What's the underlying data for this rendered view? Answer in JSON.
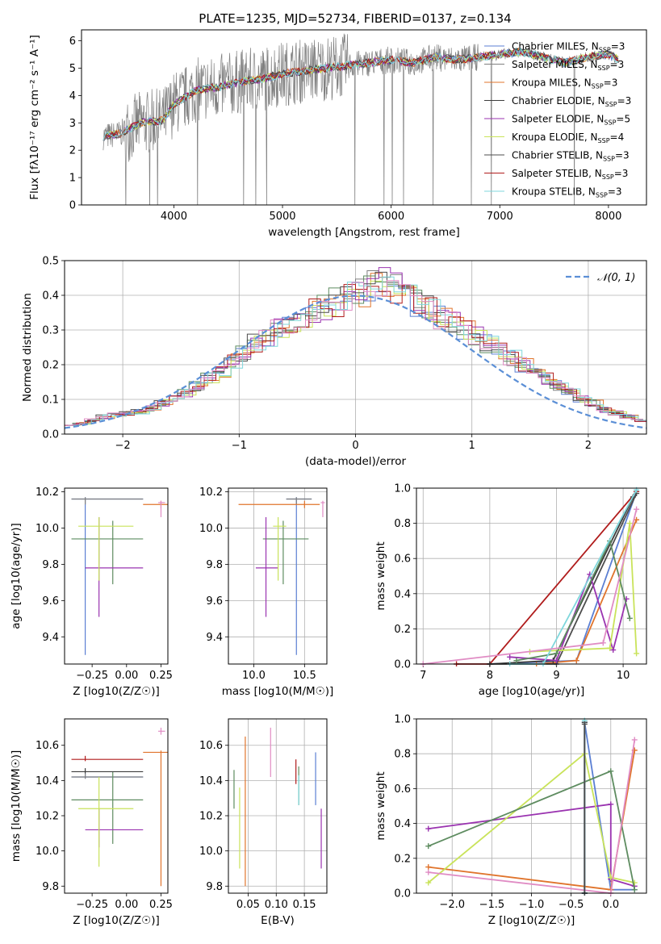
{
  "figure_title": "PLATE=1235, MJD=52734, FIBERID=0137, z=0.134",
  "colors": {
    "chabrier_miles": "#5b7fd3",
    "salpeter_miles": "#808080",
    "kroupa_miles": "#e0742c",
    "chabrier_elodie": "#3d3d3d",
    "salpeter_elodie": "#9a33b0",
    "kroupa_elodie": "#c9e35a",
    "chabrier_stelib": "#4d4d4d",
    "salpeter_stelib": "#b01c1c",
    "kroupa_stelib": "#7fd7dc",
    "gauss": "#5b8fd6",
    "pink": "#e08cc4",
    "green": "#5e8c60"
  },
  "chart_data": [
    {
      "id": "spectrum",
      "type": "line",
      "title": "PLATE=1235, MJD=52734, FIBERID=0137, z=0.134",
      "xlabel": "wavelength [Angstrom, rest frame]",
      "ylabel": "Flux [f_λ 10^-17 erg cm^-2 s^-1 A^-1]",
      "xlim": [
        3150,
        8350
      ],
      "ylim": [
        0,
        6.4
      ],
      "xticks": [
        "4000",
        "5000",
        "6000",
        "7000",
        "8000"
      ],
      "yticks": [
        "0",
        "1",
        "2",
        "3",
        "4",
        "5",
        "6"
      ],
      "legend_position": "upper right",
      "data_spectrum": {
        "x": [
          3350,
          3500,
          3700,
          3900,
          4000,
          4100,
          4200,
          4400,
          4600,
          4800,
          5000,
          5200,
          5400,
          5600,
          5800,
          6000,
          6200,
          6400,
          6600,
          6800,
          7000,
          7200,
          7400,
          7600,
          7800,
          8000,
          8100
        ],
        "y": [
          2.5,
          2.6,
          3.0,
          3.1,
          3.7,
          3.9,
          4.2,
          4.3,
          4.5,
          4.6,
          4.8,
          4.9,
          5.0,
          5.1,
          5.2,
          5.3,
          5.2,
          5.4,
          5.3,
          5.4,
          5.5,
          5.6,
          5.4,
          5.2,
          5.4,
          5.5,
          5.3
        ]
      },
      "series": [
        {
          "name": "Chabrier MILES, N_SSP=3",
          "label_main": "Chabrier MILES, N",
          "label_sub": "SSP",
          "label_end": "=3",
          "color": "#5b7fd3"
        },
        {
          "name": "Salpeter MILES, N_SSP=3",
          "label_main": "Salpeter MILES, N",
          "label_sub": "SSP",
          "label_end": "=3",
          "color": "#808080"
        },
        {
          "name": "Kroupa MILES, N_SSP=3",
          "label_main": "Kroupa MILES, N",
          "label_sub": "SSP",
          "label_end": "=3",
          "color": "#e0742c"
        },
        {
          "name": "Chabrier ELODIE, N_SSP=3",
          "label_main": "Chabrier ELODIE, N",
          "label_sub": "SSP",
          "label_end": "=3",
          "color": "#3d3d3d"
        },
        {
          "name": "Salpeter ELODIE, N_SSP=5",
          "label_main": "Salpeter ELODIE, N",
          "label_sub": "SSP",
          "label_end": "=5",
          "color": "#9a33b0"
        },
        {
          "name": "Kroupa ELODIE, N_SSP=4",
          "label_main": "Kroupa ELODIE, N",
          "label_sub": "SSP",
          "label_end": "=4",
          "color": "#c9e35a"
        },
        {
          "name": "Chabrier STELIB, N_SSP=3",
          "label_main": "Chabrier STELIB, N",
          "label_sub": "SSP",
          "label_end": "=3",
          "color": "#4d4d4d"
        },
        {
          "name": "Salpeter STELIB, N_SSP=3",
          "label_main": "Salpeter STELIB, N",
          "label_sub": "SSP",
          "label_end": "=3",
          "color": "#b01c1c"
        },
        {
          "name": "Kroupa STELIB, N_SSP=3",
          "label_main": "Kroupa STELIB, N",
          "label_sub": "SSP",
          "label_end": "=3",
          "color": "#7fd7dc"
        }
      ]
    },
    {
      "id": "residuals",
      "type": "histogram",
      "xlabel": "(data-model)/error",
      "ylabel": "Normed distribution",
      "xlim": [
        -2.5,
        2.5
      ],
      "ylim": [
        0,
        0.5
      ],
      "xticks": [
        "−2",
        "−1",
        "0",
        "1",
        "2"
      ],
      "yticks": [
        "0.0",
        "0.1",
        "0.2",
        "0.3",
        "0.4",
        "0.5"
      ],
      "grid": true,
      "bin_width": 0.1,
      "legend": "𝒩(0, 1)",
      "reference_curve": "standard normal, dashed",
      "histogram_profile": [
        0.028,
        0.03,
        0.04,
        0.05,
        0.055,
        0.06,
        0.065,
        0.075,
        0.09,
        0.1,
        0.12,
        0.14,
        0.16,
        0.18,
        0.21,
        0.23,
        0.26,
        0.28,
        0.3,
        0.32,
        0.34,
        0.36,
        0.37,
        0.38,
        0.4,
        0.41,
        0.43,
        0.44,
        0.42,
        0.4,
        0.38,
        0.36,
        0.34,
        0.32,
        0.3,
        0.28,
        0.26,
        0.24,
        0.22,
        0.2,
        0.18,
        0.16,
        0.14,
        0.12,
        0.1,
        0.09,
        0.07,
        0.06,
        0.05,
        0.04
      ]
    },
    {
      "id": "age_vs_Z",
      "type": "errorbar",
      "xlabel": "Z [log10(Z/Z☉)]",
      "ylabel": "age  [log10(age/yr)]",
      "xlim": [
        -0.45,
        0.3
      ],
      "ylim": [
        9.25,
        10.22
      ],
      "xticks": [
        "−0.25",
        "0.00",
        "0.25"
      ],
      "yticks": [
        "9.4",
        "9.6",
        "9.8",
        "10.0",
        "10.2"
      ],
      "points": [
        {
          "x": -0.3,
          "xerr": [
            0.1,
            0.42
          ],
          "y": 10.16,
          "yerr": [
            0.86,
            0.01
          ],
          "color": "#5b7fd3"
        },
        {
          "x": -0.3,
          "xerr": [
            0.1,
            0.42
          ],
          "y": 10.16,
          "yerr": [
            0.03,
            0.01
          ],
          "color": "#808080"
        },
        {
          "x": 0.25,
          "xerr": [
            0.13,
            0.05
          ],
          "y": 10.13,
          "yerr": [
            0.02,
            0.02
          ],
          "color": "#e0742c"
        },
        {
          "x": -0.1,
          "xerr": [
            0.3,
            0.22
          ],
          "y": 9.94,
          "yerr": [
            0.25,
            0.1
          ],
          "color": "#5e8c60"
        },
        {
          "x": -0.2,
          "xerr": [
            0.1,
            0.32
          ],
          "y": 9.78,
          "yerr": [
            0.27,
            0.28
          ],
          "color": "#9a33b0"
        },
        {
          "x": -0.2,
          "xerr": [
            0.15,
            0.25
          ],
          "y": 10.01,
          "yerr": [
            0.3,
            0.05
          ],
          "color": "#c9e35a"
        },
        {
          "x": 0.25,
          "xerr": [
            0.02,
            0.03
          ],
          "y": 10.14,
          "yerr": [
            0.08,
            0.01
          ],
          "color": "#e08cc4"
        }
      ]
    },
    {
      "id": "age_vs_mass",
      "type": "errorbar",
      "xlabel": "mass [log10(M/M☉)]",
      "ylabel": "",
      "xlim": [
        9.75,
        10.72
      ],
      "ylim": [
        9.25,
        10.22
      ],
      "xticks": [
        "10.0",
        "10.5"
      ],
      "yticks": [
        "9.4",
        "9.6",
        "9.8",
        "10.0",
        "10.2"
      ],
      "points": [
        {
          "x": 10.42,
          "xerr": [
            0.1,
            0.15
          ],
          "y": 10.16,
          "yerr": [
            0.86,
            0.01
          ],
          "color": "#5b7fd3"
        },
        {
          "x": 10.42,
          "xerr": [
            0.1,
            0.15
          ],
          "y": 10.16,
          "yerr": [
            0.03,
            0.01
          ],
          "color": "#808080"
        },
        {
          "x": 10.5,
          "xerr": [
            0.65,
            0.15
          ],
          "y": 10.13,
          "yerr": [
            0.02,
            0.02
          ],
          "color": "#e0742c"
        },
        {
          "x": 10.29,
          "xerr": [
            0.2,
            0.25
          ],
          "y": 9.94,
          "yerr": [
            0.25,
            0.1
          ],
          "color": "#5e8c60"
        },
        {
          "x": 10.12,
          "xerr": [
            0.1,
            0.12
          ],
          "y": 9.78,
          "yerr": [
            0.27,
            0.28
          ],
          "color": "#9a33b0"
        },
        {
          "x": 10.24,
          "xerr": [
            0.05,
            0.08
          ],
          "y": 10.01,
          "yerr": [
            0.3,
            0.05
          ],
          "color": "#c9e35a"
        },
        {
          "x": 10.68,
          "xerr": [
            0.02,
            0.02
          ],
          "y": 10.14,
          "yerr": [
            0.08,
            0.01
          ],
          "color": "#e08cc4"
        }
      ]
    },
    {
      "id": "mass_weight_vs_age",
      "type": "line",
      "xlabel": "age  [log10(age/yr)]",
      "ylabel": "mass weight",
      "xlim": [
        6.9,
        10.35
      ],
      "ylim": [
        0,
        1.0
      ],
      "xticks": [
        "7",
        "8",
        "9",
        "10"
      ],
      "yticks": [
        "0.0",
        "0.2",
        "0.4",
        "0.6",
        "0.8",
        "1.0"
      ],
      "grid": true,
      "series": [
        {
          "color": "#5b7fd3",
          "x": [
            8.0,
            9.3,
            10.2
          ],
          "y": [
            0.0,
            0.02,
            0.98
          ]
        },
        {
          "color": "#e0742c",
          "x": [
            8.7,
            9.3,
            10.2
          ],
          "y": [
            0.0,
            0.02,
            0.82
          ]
        },
        {
          "color": "#b01c1c",
          "x": [
            7.5,
            8.0,
            10.2
          ],
          "y": [
            0.0,
            0.0,
            0.98
          ]
        },
        {
          "color": "#3d3d3d",
          "x": [
            8.0,
            8.95,
            10.15
          ],
          "y": [
            0.0,
            0.02,
            0.95
          ]
        },
        {
          "color": "#4d4d4d",
          "x": [
            8.0,
            9.0,
            10.2
          ],
          "y": [
            0.0,
            0.0,
            0.97
          ]
        },
        {
          "color": "#9a33b0",
          "x": [
            8.3,
            9.0,
            9.5,
            9.85,
            10.05
          ],
          "y": [
            0.04,
            0.02,
            0.51,
            0.08,
            0.37
          ]
        },
        {
          "color": "#c9e35a",
          "x": [
            8.6,
            9.8,
            10.1,
            10.2
          ],
          "y": [
            0.07,
            0.09,
            0.8,
            0.06
          ]
        },
        {
          "color": "#5e8c60",
          "x": [
            8.4,
            9.0,
            9.8,
            10.1
          ],
          "y": [
            0.02,
            0.06,
            0.7,
            0.26
          ]
        },
        {
          "color": "#7fd7dc",
          "x": [
            8.3,
            8.8,
            10.2
          ],
          "y": [
            0.0,
            0.0,
            0.99
          ]
        },
        {
          "color": "#e08cc4",
          "x": [
            7.0,
            9.7,
            10.2
          ],
          "y": [
            0.0,
            0.12,
            0.88
          ]
        }
      ]
    },
    {
      "id": "mass_vs_Z",
      "type": "errorbar",
      "xlabel": "Z [log10(Z/Z☉)]",
      "ylabel": "mass [log10(M/M☉)]",
      "xlim": [
        -0.45,
        0.3
      ],
      "ylim": [
        9.76,
        10.75
      ],
      "xticks": [
        "−0.25",
        "0.00",
        "0.25"
      ],
      "yticks": [
        "9.8",
        "10.0",
        "10.2",
        "10.4",
        "10.6"
      ],
      "points": [
        {
          "x": -0.3,
          "xerr": [
            0.1,
            0.42
          ],
          "y": 10.42,
          "yerr": [
            0.01,
            0.02
          ],
          "color": "#5b7fd3"
        },
        {
          "x": -0.3,
          "xerr": [
            0.1,
            0.42
          ],
          "y": 10.42,
          "yerr": [
            0.01,
            0.02
          ],
          "color": "#808080"
        },
        {
          "x": 0.25,
          "xerr": [
            0.13,
            0.05
          ],
          "y": 10.56,
          "yerr": [
            0.76,
            0.01
          ],
          "color": "#e0742c"
        },
        {
          "x": -0.1,
          "xerr": [
            0.3,
            0.22
          ],
          "y": 10.29,
          "yerr": [
            0.25,
            0.16
          ],
          "color": "#5e8c60"
        },
        {
          "x": -0.2,
          "xerr": [
            0.1,
            0.32
          ],
          "y": 10.12,
          "yerr": [
            0.1,
            0.12
          ],
          "color": "#9a33b0"
        },
        {
          "x": -0.2,
          "xerr": [
            0.15,
            0.25
          ],
          "y": 10.24,
          "yerr": [
            0.33,
            0.18
          ],
          "color": "#c9e35a"
        },
        {
          "x": 0.25,
          "xerr": [
            0.02,
            0.03
          ],
          "y": 10.68,
          "yerr": [
            0.02,
            0.02
          ],
          "color": "#e08cc4"
        },
        {
          "x": -0.3,
          "xerr": [
            0.1,
            0.42
          ],
          "y": 10.52,
          "yerr": [
            0.01,
            0.02
          ],
          "color": "#b01c1c"
        },
        {
          "x": -0.3,
          "xerr": [
            0.1,
            0.42
          ],
          "y": 10.45,
          "yerr": [
            0.01,
            0.02
          ],
          "color": "#3d3d3d"
        }
      ]
    },
    {
      "id": "mass_vs_ebv",
      "type": "errorbar",
      "xlabel": "E(B-V)",
      "ylabel": "",
      "xlim": [
        0.015,
        0.19
      ],
      "ylim": [
        9.76,
        10.75
      ],
      "xticks": [
        "0.05",
        "0.10",
        "0.15"
      ],
      "yticks": [
        "9.8",
        "10.0",
        "10.2",
        "10.4",
        "10.6"
      ],
      "points": [
        {
          "x": 0.025,
          "y": 10.35,
          "yerr": [
            0.11,
            0.11
          ],
          "color": "#5e8c60"
        },
        {
          "x": 0.035,
          "y": 10.15,
          "yerr": [
            0.25,
            0.21
          ],
          "color": "#c9e35a"
        },
        {
          "x": 0.045,
          "y": 10.22,
          "yerr": [
            0.42,
            0.43
          ],
          "color": "#e0742c"
        },
        {
          "x": 0.09,
          "y": 10.58,
          "yerr": [
            0.16,
            0.12
          ],
          "color": "#e08cc4"
        },
        {
          "x": 0.135,
          "y": 10.44,
          "yerr": [
            0.06,
            0.08
          ],
          "color": "#b01c1c"
        },
        {
          "x": 0.14,
          "y": 10.38,
          "yerr": [
            0.12,
            0.1
          ],
          "color": "#5e8c60"
        },
        {
          "x": 0.14,
          "y": 10.4,
          "yerr": [
            0.14,
            0.03
          ],
          "color": "#7fd7dc"
        },
        {
          "x": 0.17,
          "y": 10.42,
          "yerr": [
            0.16,
            0.14
          ],
          "color": "#5b7fd3"
        },
        {
          "x": 0.18,
          "y": 10.07,
          "yerr": [
            0.17,
            0.17
          ],
          "color": "#9a33b0"
        }
      ]
    },
    {
      "id": "mass_weight_vs_Z",
      "type": "line",
      "xlabel": "Z [log10(Z/Z☉)]",
      "ylabel": "mass weight",
      "xlim": [
        -2.45,
        0.45
      ],
      "ylim": [
        0,
        1.0
      ],
      "xticks": [
        "−2.0",
        "−1.5",
        "−1.0",
        "−0.5",
        "0.0"
      ],
      "yticks": [
        "0.0",
        "0.2",
        "0.4",
        "0.6",
        "0.8",
        "1.0"
      ],
      "grid": true,
      "series": [
        {
          "color": "#5b7fd3",
          "x": [
            -0.33,
            -0.33,
            0.0,
            0.3
          ],
          "y": [
            0.0,
            0.98,
            0.02,
            0.02
          ]
        },
        {
          "color": "#e0742c",
          "x": [
            -2.3,
            0.0,
            0.3
          ],
          "y": [
            0.15,
            0.02,
            0.82
          ]
        },
        {
          "color": "#3d3d3d",
          "x": [
            -0.33,
            -0.33
          ],
          "y": [
            0.0,
            0.98
          ]
        },
        {
          "color": "#9a33b0",
          "x": [
            -2.3,
            0.0,
            0.0,
            0.3
          ],
          "y": [
            0.37,
            0.51,
            0.08,
            0.04
          ]
        },
        {
          "color": "#c9e35a",
          "x": [
            -2.3,
            -0.33,
            0.0,
            0.3
          ],
          "y": [
            0.06,
            0.8,
            0.09,
            0.06
          ]
        },
        {
          "color": "#5e8c60",
          "x": [
            -2.3,
            0.0,
            0.3
          ],
          "y": [
            0.27,
            0.7,
            0.02
          ]
        },
        {
          "color": "#7fd7dc",
          "x": [
            -0.33,
            -0.33
          ],
          "y": [
            0.0,
            0.99
          ]
        },
        {
          "color": "#e08cc4",
          "x": [
            -2.3,
            0.0,
            0.3
          ],
          "y": [
            0.12,
            0.0,
            0.88
          ]
        },
        {
          "color": "#4d4d4d",
          "x": [
            -0.33,
            -0.33
          ],
          "y": [
            0.0,
            0.97
          ]
        }
      ]
    }
  ]
}
